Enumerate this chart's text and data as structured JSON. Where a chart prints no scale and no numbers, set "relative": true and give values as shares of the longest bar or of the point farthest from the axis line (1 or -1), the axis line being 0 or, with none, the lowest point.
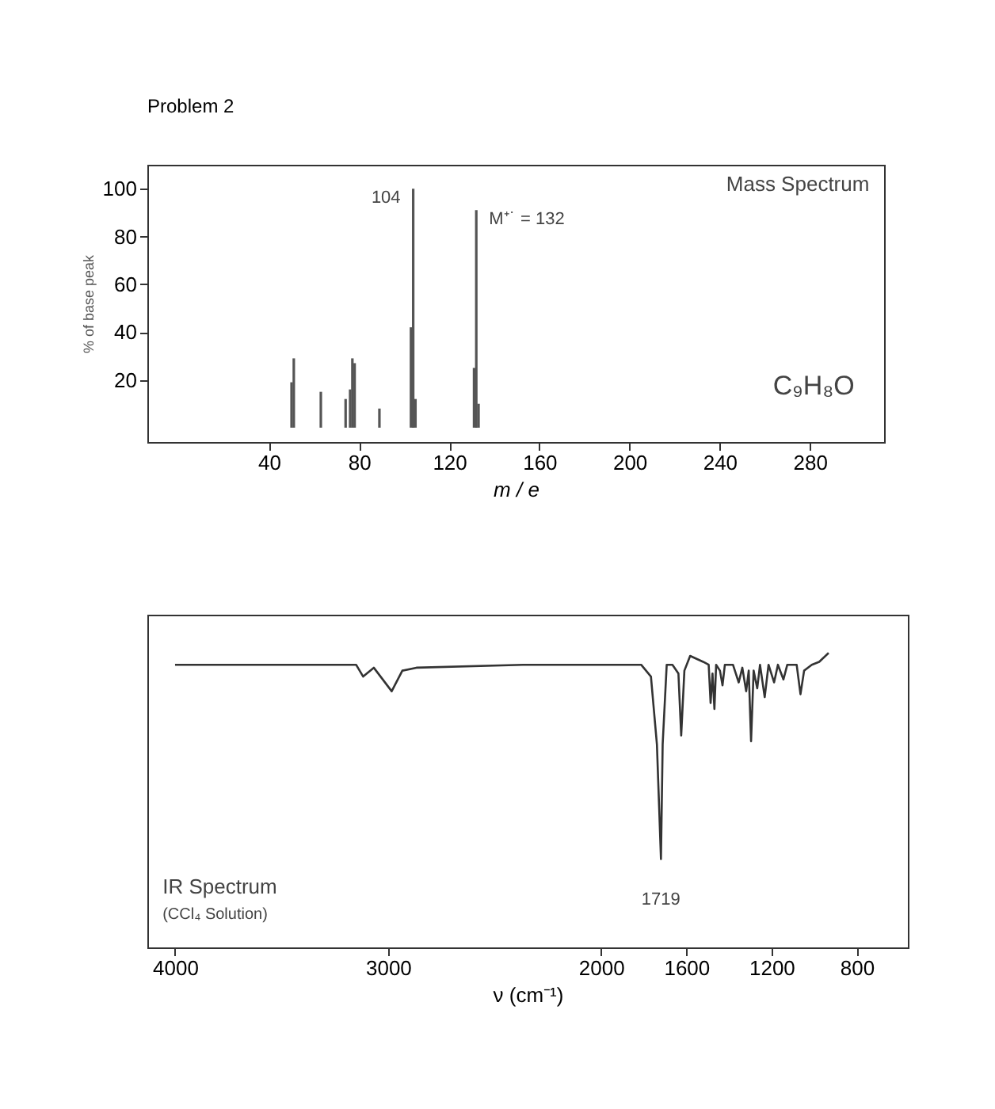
{
  "chart_data": [
    {
      "type": "bar",
      "title": "Problem 2",
      "xlabel": "m / e",
      "ylabel": "% of base peak",
      "color": "#555555",
      "x": [
        50,
        51,
        63,
        74,
        76,
        77,
        78,
        89,
        103,
        104,
        105,
        131,
        132,
        133
      ],
      "values": [
        19,
        29,
        15,
        12,
        16,
        29,
        27,
        8,
        42,
        100,
        12,
        25,
        91,
        10
      ],
      "xlim": [
        -14,
        313
      ],
      "ylim": [
        -6,
        110
      ],
      "xticks": [
        40,
        80,
        120,
        160,
        200,
        240,
        280
      ],
      "yticks": [
        20,
        40,
        60,
        80,
        100
      ],
      "annotations": [
        "Mass Spectrum",
        "C₉H₈O",
        {
          "text": "104",
          "x": 104,
          "y": 100
        },
        {
          "text": "M⁺˙ = 132",
          "x": 132,
          "y": 91
        }
      ]
    },
    {
      "type": "line",
      "relative": true,
      "xlabel": "ν (cm⁻¹)",
      "color": "#333333",
      "x": [
        4000,
        3433,
        3150,
        3117,
        3067,
        2983,
        2933,
        2867,
        2367,
        1996,
        1812,
        1766,
        1738,
        1719,
        1711,
        1692,
        1665,
        1637,
        1624,
        1609,
        1582,
        1521,
        1495,
        1486,
        1477,
        1468,
        1460,
        1442,
        1430,
        1419,
        1381,
        1354,
        1337,
        1319,
        1307,
        1296,
        1284,
        1267,
        1254,
        1232,
        1214,
        1188,
        1170,
        1144,
        1126,
        1082,
        1064,
        1047,
        1011,
        976,
        932
      ],
      "values": [
        0.96,
        0.96,
        0.96,
        0.92,
        0.95,
        0.87,
        0.94,
        0.95,
        0.96,
        0.96,
        0.96,
        0.92,
        0.69,
        0.3,
        0.69,
        0.96,
        0.96,
        0.93,
        0.72,
        0.94,
        0.99,
        0.97,
        0.96,
        0.83,
        0.93,
        0.81,
        0.96,
        0.94,
        0.89,
        0.96,
        0.96,
        0.9,
        0.95,
        0.87,
        0.94,
        0.7,
        0.94,
        0.88,
        0.96,
        0.85,
        0.96,
        0.9,
        0.96,
        0.91,
        0.96,
        0.96,
        0.86,
        0.94,
        0.96,
        0.97,
        1.0
      ],
      "xlim": [
        4130,
        560
      ],
      "xticks": [
        4000,
        3000,
        2000,
        1600,
        1200,
        800
      ],
      "annotations": [
        "IR Spectrum",
        "(CCl₄ Solution)",
        {
          "text": "1719",
          "x": 1719,
          "y": 0.3
        }
      ]
    }
  ]
}
